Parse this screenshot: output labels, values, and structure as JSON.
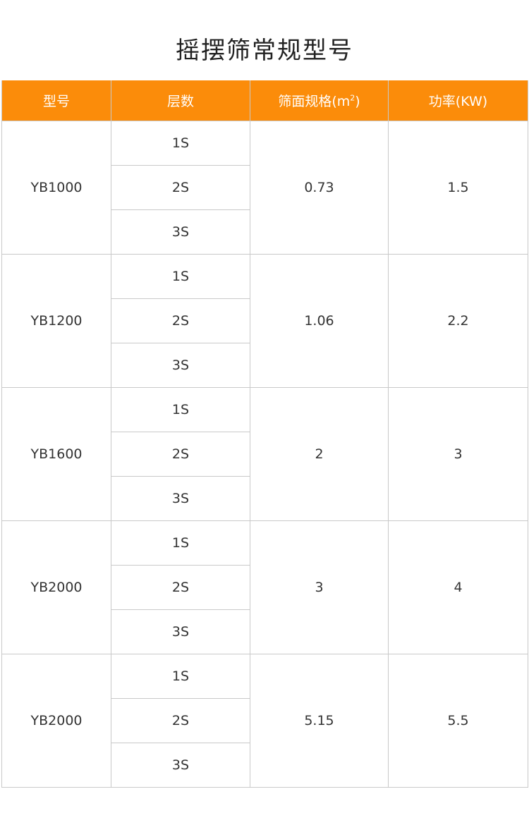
{
  "title": "摇摆筛常规型号",
  "header": {
    "model": "型号",
    "layers": "层数",
    "area": "筛面规格(m",
    "area_sup": "2",
    "area_close": ")",
    "power": "功率(KW)"
  },
  "accent_color": "#fb8c0a",
  "rows": [
    {
      "model": "YB1000",
      "layers": [
        "1S",
        "2S",
        "3S"
      ],
      "area": "0.73",
      "power": "1.5"
    },
    {
      "model": "YB1200",
      "layers": [
        "1S",
        "2S",
        "3S"
      ],
      "area": "1.06",
      "power": "2.2"
    },
    {
      "model": "YB1600",
      "layers": [
        "1S",
        "2S",
        "3S"
      ],
      "area": "2",
      "power": "3"
    },
    {
      "model": "YB2000",
      "layers": [
        "1S",
        "2S",
        "3S"
      ],
      "area": "3",
      "power": "4"
    },
    {
      "model": "YB2000",
      "layers": [
        "1S",
        "2S",
        "3S"
      ],
      "area": "5.15",
      "power": "5.5"
    }
  ]
}
